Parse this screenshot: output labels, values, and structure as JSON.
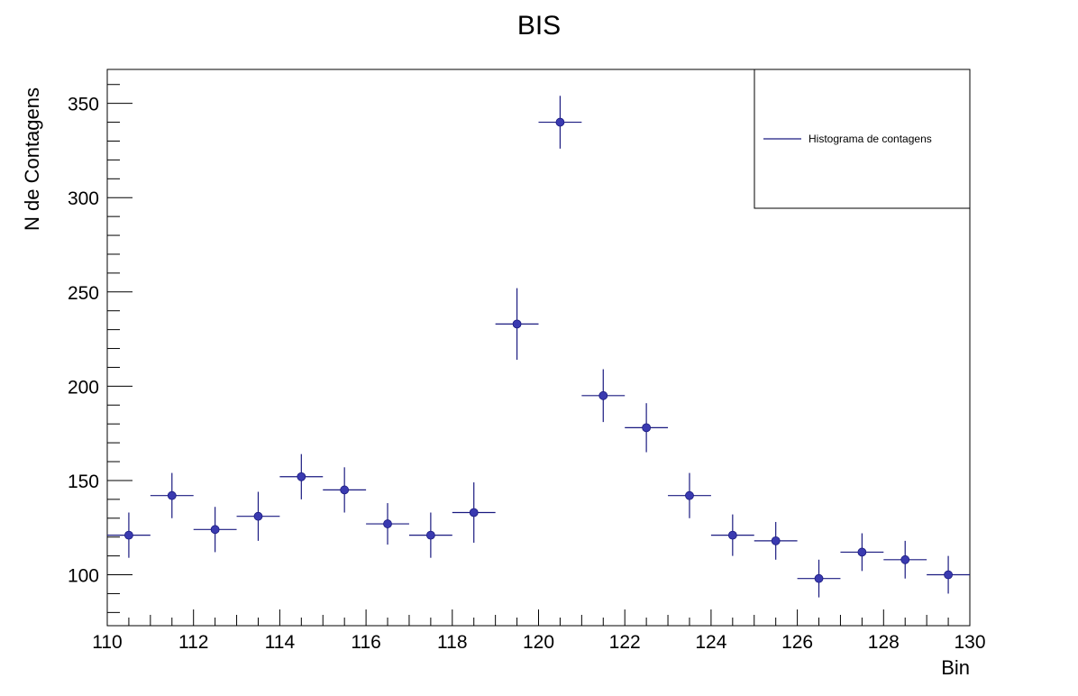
{
  "chart_data": {
    "type": "scatter",
    "title": "BIS",
    "xlabel": "Bin",
    "ylabel": "N de Contagens",
    "xlim": [
      110,
      130
    ],
    "ylim": [
      73,
      368
    ],
    "x_ticks": [
      110,
      112,
      114,
      116,
      118,
      120,
      122,
      124,
      126,
      128,
      130
    ],
    "y_ticks": [
      100,
      150,
      200,
      250,
      300,
      350
    ],
    "grid": false,
    "legend_position": "top-right",
    "marker_color": "#3a3ab0",
    "error_bar_color": "#1a1a80",
    "series": [
      {
        "name": "Histograma de contagens",
        "bin_width": 1,
        "x": [
          110.5,
          111.5,
          112.5,
          113.5,
          114.5,
          115.5,
          116.5,
          117.5,
          118.5,
          119.5,
          120.5,
          121.5,
          122.5,
          123.5,
          124.5,
          125.5,
          126.5,
          127.5,
          128.5,
          129.5
        ],
        "y": [
          121,
          142,
          124,
          131,
          152,
          145,
          127,
          121,
          133,
          233,
          340,
          195,
          178,
          142,
          121,
          118,
          98,
          112,
          108,
          100
        ],
        "y_err": [
          12,
          12,
          12,
          13,
          12,
          12,
          11,
          12,
          16,
          19,
          14,
          14,
          13,
          12,
          11,
          10,
          10,
          10,
          10,
          10
        ]
      }
    ]
  }
}
